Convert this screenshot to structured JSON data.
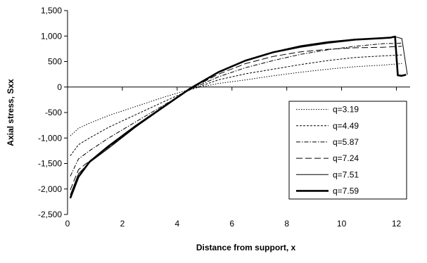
{
  "chart_data": {
    "type": "line",
    "title": "",
    "xlabel": "Distance from support, x",
    "ylabel": "Axial stress, Sxx",
    "xlim": [
      0,
      12.5
    ],
    "ylim": [
      -2500,
      1500
    ],
    "xticks": [
      0,
      2,
      4,
      6,
      8,
      10,
      12
    ],
    "xtick_labels": [
      "0",
      "2",
      "4",
      "6",
      "8",
      "10",
      "12"
    ],
    "yticks": [
      -2500,
      -2000,
      -1500,
      -1000,
      -500,
      0,
      500,
      1000,
      1500
    ],
    "ytick_labels": [
      "-2,500",
      "-2,000",
      "-1,500",
      "-1,000",
      "-500",
      "0",
      "500",
      "1,000",
      "1,500"
    ],
    "grid": false,
    "legend": {
      "position": "right-center"
    },
    "series": [
      {
        "name": "q=3.19",
        "style": "dotted",
        "x": [
          0.1,
          0.4,
          0.8,
          1.5,
          2.5,
          3.5,
          4.5,
          5.5,
          6.5,
          7.5,
          8.5,
          9.5,
          10.5,
          11.5,
          12.2
        ],
        "y": [
          -960,
          -810,
          -710,
          -560,
          -380,
          -200,
          -40,
          70,
          140,
          220,
          290,
          350,
          400,
          430,
          460
        ]
      },
      {
        "name": "q=4.49",
        "style": "short-dash",
        "x": [
          0.1,
          0.4,
          0.8,
          1.5,
          2.5,
          3.5,
          4.5,
          5.5,
          6.5,
          7.5,
          8.5,
          9.5,
          10.5,
          11.5,
          12.2
        ],
        "y": [
          -1350,
          -1130,
          -1000,
          -790,
          -540,
          -290,
          -50,
          140,
          260,
          350,
          440,
          520,
          580,
          610,
          630
        ]
      },
      {
        "name": "q=5.87",
        "style": "dash-dot",
        "x": [
          0.1,
          0.4,
          0.8,
          1.5,
          2.5,
          3.5,
          4.5,
          5.5,
          6.5,
          7.5,
          8.5,
          9.5,
          10.5,
          11.5,
          12.2
        ],
        "y": [
          -1750,
          -1410,
          -1250,
          -1000,
          -680,
          -360,
          -40,
          200,
          380,
          520,
          640,
          730,
          800,
          850,
          860
        ]
      },
      {
        "name": "q=7.24",
        "style": "long-dash",
        "x": [
          0.1,
          0.4,
          0.8,
          1.5,
          2.5,
          3.5,
          4.5,
          5.5,
          6.5,
          7.5,
          8.5,
          9.5,
          10.5,
          11.5,
          12.2
        ],
        "y": [
          -2020,
          -1620,
          -1450,
          -1180,
          -780,
          -400,
          -30,
          250,
          460,
          600,
          690,
          740,
          770,
          780,
          800
        ]
      },
      {
        "name": "q=7.51",
        "style": "thin-solid",
        "x": [
          0.1,
          0.4,
          0.8,
          1.5,
          2.5,
          3.5,
          4.5,
          5.5,
          6.5,
          7.5,
          8.5,
          9.5,
          10.5,
          11.5,
          12.0,
          12.2,
          12.4
        ],
        "y": [
          -2120,
          -1700,
          -1480,
          -1200,
          -780,
          -400,
          -20,
          290,
          520,
          690,
          810,
          890,
          940,
          960,
          980,
          950,
          240
        ]
      },
      {
        "name": "q=7.59",
        "style": "thick-solid",
        "x": [
          0.1,
          0.4,
          0.8,
          1.5,
          2.5,
          3.5,
          4.5,
          5.5,
          6.5,
          7.5,
          8.5,
          9.5,
          10.5,
          11.5,
          11.8,
          11.95,
          12.05,
          12.2,
          12.35
        ],
        "y": [
          -2180,
          -1760,
          -1470,
          -1160,
          -760,
          -390,
          -20,
          290,
          520,
          680,
          790,
          870,
          930,
          960,
          970,
          990,
          230,
          220,
          240
        ]
      }
    ]
  }
}
